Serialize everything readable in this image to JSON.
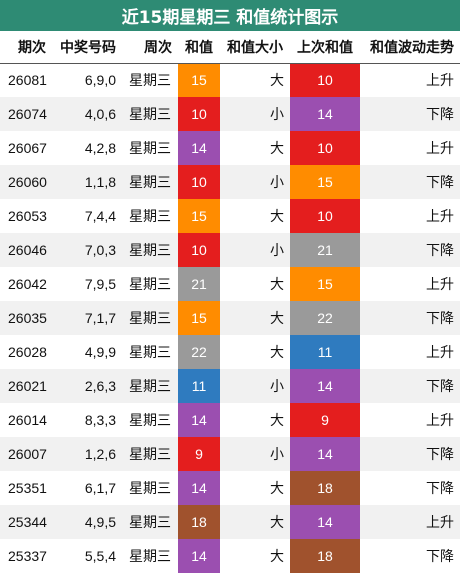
{
  "title": "近15期星期三 和值统计图示",
  "headers": [
    "期次",
    "中奖号码",
    "周次",
    "和值",
    "和值大小",
    "上次和值",
    "和值波动走势"
  ],
  "colors": {
    "title_bg": "#2e8b74",
    "red": "#e41e1e",
    "orange": "#ff8c00",
    "purple": "#9b4fb0",
    "gray": "#9a9a9a",
    "blue": "#2f7bbf",
    "brown": "#a0522d"
  },
  "rows": [
    {
      "period": "26081",
      "numbers": "6,9,0",
      "week": "星期三",
      "sum": "15",
      "sum_color": "orange",
      "size": "大",
      "prev_sum": "10",
      "prev_color": "red",
      "trend": "上升"
    },
    {
      "period": "26074",
      "numbers": "4,0,6",
      "week": "星期三",
      "sum": "10",
      "sum_color": "red",
      "size": "小",
      "prev_sum": "14",
      "prev_color": "purple",
      "trend": "下降"
    },
    {
      "period": "26067",
      "numbers": "4,2,8",
      "week": "星期三",
      "sum": "14",
      "sum_color": "purple",
      "size": "大",
      "prev_sum": "10",
      "prev_color": "red",
      "trend": "上升"
    },
    {
      "period": "26060",
      "numbers": "1,1,8",
      "week": "星期三",
      "sum": "10",
      "sum_color": "red",
      "size": "小",
      "prev_sum": "15",
      "prev_color": "orange",
      "trend": "下降"
    },
    {
      "period": "26053",
      "numbers": "7,4,4",
      "week": "星期三",
      "sum": "15",
      "sum_color": "orange",
      "size": "大",
      "prev_sum": "10",
      "prev_color": "red",
      "trend": "上升"
    },
    {
      "period": "26046",
      "numbers": "7,0,3",
      "week": "星期三",
      "sum": "10",
      "sum_color": "red",
      "size": "小",
      "prev_sum": "21",
      "prev_color": "gray",
      "trend": "下降"
    },
    {
      "period": "26042",
      "numbers": "7,9,5",
      "week": "星期三",
      "sum": "21",
      "sum_color": "gray",
      "size": "大",
      "prev_sum": "15",
      "prev_color": "orange",
      "trend": "上升"
    },
    {
      "period": "26035",
      "numbers": "7,1,7",
      "week": "星期三",
      "sum": "15",
      "sum_color": "orange",
      "size": "大",
      "prev_sum": "22",
      "prev_color": "gray",
      "trend": "下降"
    },
    {
      "period": "26028",
      "numbers": "4,9,9",
      "week": "星期三",
      "sum": "22",
      "sum_color": "gray",
      "size": "大",
      "prev_sum": "11",
      "prev_color": "blue",
      "trend": "上升"
    },
    {
      "period": "26021",
      "numbers": "2,6,3",
      "week": "星期三",
      "sum": "11",
      "sum_color": "blue",
      "size": "小",
      "prev_sum": "14",
      "prev_color": "purple",
      "trend": "下降"
    },
    {
      "period": "26014",
      "numbers": "8,3,3",
      "week": "星期三",
      "sum": "14",
      "sum_color": "purple",
      "size": "大",
      "prev_sum": "9",
      "prev_color": "red",
      "trend": "上升"
    },
    {
      "period": "26007",
      "numbers": "1,2,6",
      "week": "星期三",
      "sum": "9",
      "sum_color": "red",
      "size": "小",
      "prev_sum": "14",
      "prev_color": "purple",
      "trend": "下降"
    },
    {
      "period": "25351",
      "numbers": "6,1,7",
      "week": "星期三",
      "sum": "14",
      "sum_color": "purple",
      "size": "大",
      "prev_sum": "18",
      "prev_color": "brown",
      "trend": "下降"
    },
    {
      "period": "25344",
      "numbers": "4,9,5",
      "week": "星期三",
      "sum": "18",
      "sum_color": "brown",
      "size": "大",
      "prev_sum": "14",
      "prev_color": "purple",
      "trend": "上升"
    },
    {
      "period": "25337",
      "numbers": "5,5,4",
      "week": "星期三",
      "sum": "14",
      "sum_color": "purple",
      "size": "大",
      "prev_sum": "18",
      "prev_color": "brown",
      "trend": "下降"
    }
  ]
}
